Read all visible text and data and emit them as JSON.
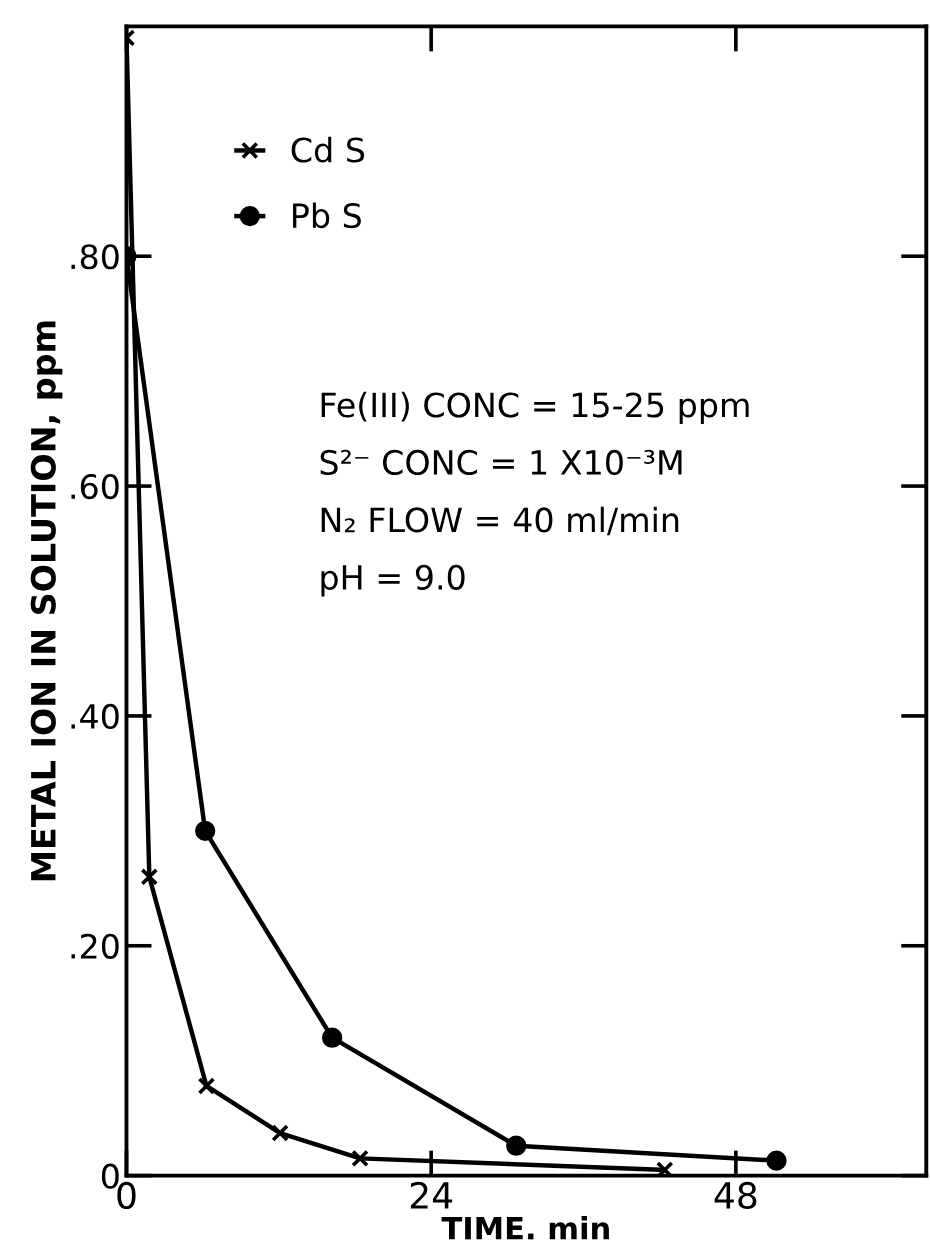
{
  "chart_data": {
    "type": "line",
    "xlabel": "TIME. min",
    "ylabel": "METAL ION IN SOLUTION, ppm",
    "xlim": [
      0,
      63
    ],
    "ylim": [
      0,
      1.0
    ],
    "xticks": [
      0,
      24,
      48
    ],
    "yticks": [
      0,
      {
        "value": 0.2,
        "label": ".20"
      },
      {
        "value": 0.4,
        "label": ".40"
      },
      {
        "value": 0.6,
        "label": ".60"
      },
      {
        "value": 0.8,
        "label": ".80"
      }
    ],
    "series": [
      {
        "name": "Cd S",
        "color": "#000000",
        "marker": "cross",
        "x": [
          0,
          1.8,
          6.3,
          12.1,
          18.4,
          42.4
        ],
        "values": [
          0.99,
          0.26,
          0.078,
          0.037,
          0.015,
          0.005
        ]
      },
      {
        "name": "Pb S",
        "color": "#000000",
        "marker": "circle",
        "x": [
          0,
          6.2,
          16.2,
          30.7,
          51.2
        ],
        "values": [
          0.8,
          0.3,
          0.12,
          0.026,
          0.013
        ]
      }
    ],
    "annotations": [
      "Fe(III) CONC = 15-25 ppm",
      "S²⁻ CONC = 1 X10⁻³M",
      "N₂ FLOW = 40 ml/min",
      "pH = 9.0"
    ],
    "legend": "top left",
    "grid": false,
    "line_style": "solid"
  }
}
